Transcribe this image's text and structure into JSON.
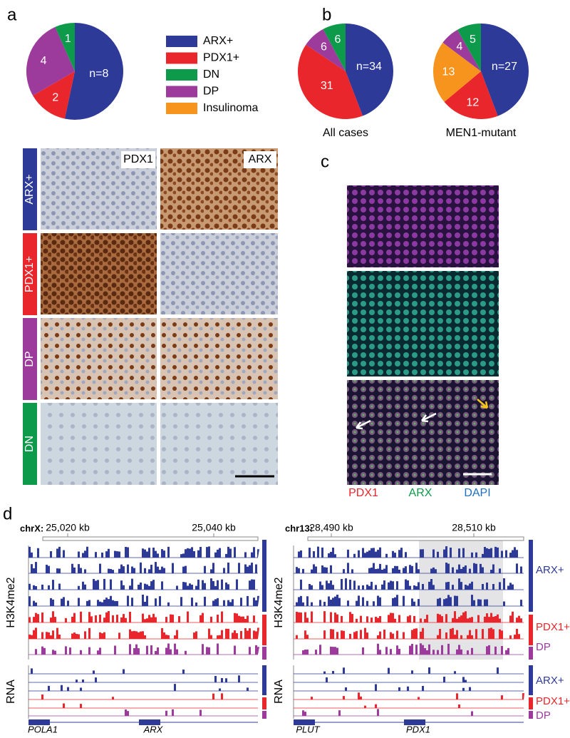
{
  "panel_labels": {
    "a": "a",
    "b": "b",
    "c": "c",
    "d": "d"
  },
  "chart_data": [
    {
      "type": "pie",
      "categories": [
        "ARX+",
        "PDX1+",
        "DP",
        "DN"
      ],
      "values": [
        8,
        2,
        4,
        1
      ],
      "value_labels": [
        "n=8",
        "2",
        "4",
        "1"
      ],
      "colors": [
        "#2e3a97",
        "#e8262b",
        "#9c3b9b",
        "#0d9a4a"
      ]
    },
    {
      "type": "pie",
      "caption": "All cases",
      "categories": [
        "ARX+",
        "PDX1+",
        "DP",
        "DN"
      ],
      "values": [
        34,
        31,
        6,
        6
      ],
      "value_labels": [
        "n=34",
        "31",
        "6",
        "6"
      ],
      "colors": [
        "#2e3a97",
        "#e8262b",
        "#9c3b9b",
        "#0d9a4a"
      ]
    },
    {
      "type": "pie",
      "caption": "MEN1-mutant",
      "categories": [
        "ARX+",
        "PDX1+",
        "Insulinoma",
        "DP",
        "DN"
      ],
      "values": [
        27,
        12,
        13,
        4,
        5
      ],
      "value_labels": [
        "n=27",
        "12",
        "13",
        "4",
        "5"
      ],
      "colors": [
        "#2e3a97",
        "#e8262b",
        "#f7941d",
        "#9c3b9b",
        "#0d9a4a"
      ]
    }
  ],
  "legend": [
    {
      "name": "ARX+",
      "color": "#2e3a97"
    },
    {
      "name": "PDX1+",
      "color": "#e8262b"
    },
    {
      "name": "DN",
      "color": "#0d9a4a"
    },
    {
      "name": "DP",
      "color": "#9c3b9b"
    },
    {
      "name": "Insulinoma",
      "color": "#f7941d"
    }
  ],
  "ihc": {
    "columns": [
      "PDX1",
      "ARX"
    ],
    "rows": [
      {
        "label": "ARX+",
        "color": "#2e3a97"
      },
      {
        "label": "PDX1+",
        "color": "#e8262b"
      },
      {
        "label": "DP",
        "color": "#9c3b9b"
      },
      {
        "label": "DN",
        "color": "#0d9a4a"
      }
    ]
  },
  "if_panel": {
    "channels": [
      {
        "label": "PDX1",
        "color": "#e8262b"
      },
      {
        "label": "ARX",
        "color": "#0d9a4a"
      },
      {
        "label": "DAPI",
        "color": "#1f6fc0"
      }
    ]
  },
  "tracks": {
    "assays": [
      "H3K4me2",
      "RNA"
    ],
    "groups": [
      {
        "label": "ARX+",
        "color": "#2e3a97"
      },
      {
        "label": "PDX1+",
        "color": "#e8262b"
      },
      {
        "label": "DP",
        "color": "#9c3b9b"
      }
    ],
    "left": {
      "chrom": "chrX:",
      "ticks": [
        "25,020 kb",
        "25,040 kb"
      ],
      "genes": [
        "POLA1",
        "ARX"
      ]
    },
    "right": {
      "chrom": "chr13:",
      "ticks": [
        "28,490 kb",
        "28,510 kb"
      ],
      "genes": [
        "PLUT",
        "PDX1"
      ]
    }
  }
}
